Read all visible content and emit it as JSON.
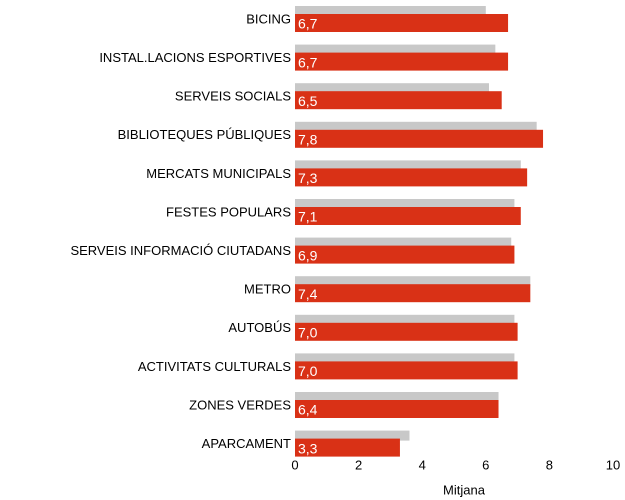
{
  "chart_data": {
    "type": "bar",
    "orientation": "horizontal",
    "categories": [
      "BICING",
      "INSTAL.LACIONS ESPORTIVES",
      "SERVEIS SOCIALS",
      "BIBLIOTEQUES PÚBLIQUES",
      "MERCATS MUNICIPALS",
      "FESTES POPULARS",
      "SERVEIS INFORMACIÓ CIUTADANS",
      "METRO",
      "AUTOBÚS",
      "ACTIVITATS CULTURALS",
      "ZONES VERDES",
      "APARCAMENT"
    ],
    "series": [
      {
        "color": "#c8c8c8",
        "values": [
          6.0,
          6.3,
          6.1,
          7.6,
          7.1,
          6.9,
          6.8,
          7.4,
          6.9,
          6.9,
          6.4,
          3.6
        ]
      },
      {
        "color": "#d93116",
        "values": [
          6.7,
          6.7,
          6.5,
          7.8,
          7.3,
          7.1,
          6.9,
          7.4,
          7.0,
          7.0,
          6.4,
          3.3
        ],
        "value_labels": [
          "6,7",
          "6,7",
          "6,5",
          "7,8",
          "7,3",
          "7,1",
          "6,9",
          "7,4",
          "7,0",
          "7,0",
          "6,4",
          "3,3"
        ]
      }
    ],
    "xlabel": "Mitjana",
    "xlim": [
      0,
      10
    ],
    "xticks": [
      0,
      2,
      4,
      6,
      8,
      10
    ],
    "grid": false
  }
}
